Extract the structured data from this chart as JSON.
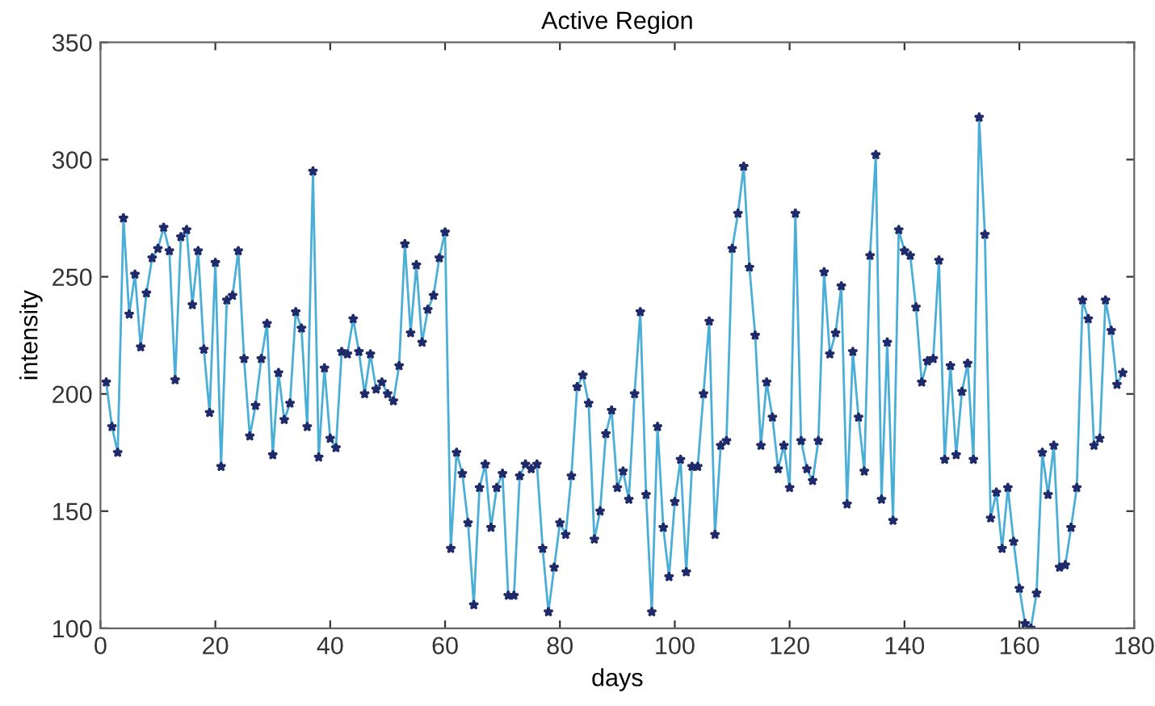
{
  "chart_data": {
    "type": "line",
    "title": "Active Region",
    "xlabel": "days",
    "ylabel": "intensity",
    "xlim": [
      0,
      180
    ],
    "ylim": [
      100,
      350
    ],
    "xticks": [
      0,
      20,
      40,
      60,
      80,
      100,
      120,
      140,
      160,
      180
    ],
    "yticks": [
      100,
      150,
      200,
      250,
      300,
      350
    ],
    "grid": false,
    "legend": false,
    "marker": "star",
    "line_style": "solid",
    "x": [
      1,
      2,
      3,
      4,
      5,
      6,
      7,
      8,
      9,
      10,
      11,
      12,
      13,
      14,
      15,
      16,
      17,
      18,
      19,
      20,
      21,
      22,
      23,
      24,
      25,
      26,
      27,
      28,
      29,
      30,
      31,
      32,
      33,
      34,
      35,
      36,
      37,
      38,
      39,
      40,
      41,
      42,
      43,
      44,
      45,
      46,
      47,
      48,
      49,
      50,
      51,
      52,
      53,
      54,
      55,
      56,
      57,
      58,
      59,
      60,
      61,
      62,
      63,
      64,
      65,
      66,
      67,
      68,
      69,
      70,
      71,
      72,
      73,
      74,
      75,
      76,
      77,
      78,
      79,
      80,
      81,
      82,
      83,
      84,
      85,
      86,
      87,
      88,
      89,
      90,
      91,
      92,
      93,
      94,
      95,
      96,
      97,
      98,
      99,
      100,
      101,
      102,
      103,
      104,
      105,
      106,
      107,
      108,
      109,
      110,
      111,
      112,
      113,
      114,
      115,
      116,
      117,
      118,
      119,
      120,
      121,
      122,
      123,
      124,
      125,
      126,
      127,
      128,
      129,
      130,
      131,
      132,
      133,
      134,
      135,
      136,
      137,
      138,
      139,
      140,
      141,
      142,
      143,
      144,
      145,
      146,
      147,
      148,
      149,
      150,
      151,
      152,
      153,
      154,
      155,
      156,
      157,
      158,
      159,
      160,
      161,
      162,
      163,
      164,
      165,
      166,
      167,
      168,
      169,
      170,
      171,
      172,
      173,
      174,
      175,
      176,
      177,
      178
    ],
    "series": [
      {
        "color": "#4aaed6",
        "values": [
          205,
          186,
          175,
          275,
          234,
          251,
          220,
          243,
          258,
          262,
          271,
          261,
          206,
          267,
          270,
          238,
          261,
          219,
          192,
          256,
          169,
          240,
          242,
          261,
          215,
          182,
          195,
          215,
          230,
          174,
          209,
          189,
          196,
          235,
          228,
          186,
          295,
          173,
          211,
          181,
          177,
          218,
          217,
          232,
          218,
          200,
          217,
          202,
          205,
          200,
          197,
          212,
          264,
          226,
          255,
          222,
          236,
          242,
          258,
          269,
          134,
          175,
          166,
          145,
          110,
          160,
          170,
          143,
          160,
          166,
          114,
          114,
          165,
          170,
          168,
          170,
          134,
          107,
          126,
          145,
          140,
          165,
          203,
          208,
          196,
          138,
          150,
          183,
          193,
          160,
          167,
          155,
          200,
          235,
          157,
          107,
          186,
          143,
          122,
          154,
          172,
          124,
          169,
          169,
          200,
          231,
          140,
          178,
          180,
          262,
          277,
          297,
          254,
          225,
          178,
          205,
          190,
          168,
          178,
          160,
          277,
          180,
          168,
          163,
          180,
          252,
          217,
          226,
          246,
          153,
          218,
          190,
          167,
          259,
          302,
          155,
          222,
          146,
          270,
          261,
          259,
          237,
          205,
          214,
          215,
          257,
          172,
          212,
          174,
          201,
          213,
          172,
          318,
          268,
          147,
          158,
          134,
          160,
          137,
          117,
          102,
          100,
          115,
          175,
          157,
          178,
          126,
          127,
          143,
          160,
          240,
          232,
          178,
          181,
          240,
          227,
          204,
          209
        ]
      }
    ]
  }
}
